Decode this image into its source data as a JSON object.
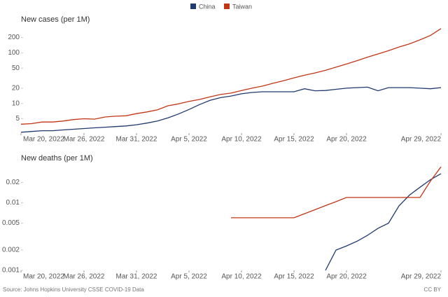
{
  "chart_data": [
    {
      "type": "line",
      "title": "New cases (per 1M)",
      "log": true,
      "x": [
        "2022-03-20",
        "2022-03-21",
        "2022-03-22",
        "2022-03-23",
        "2022-03-24",
        "2022-03-25",
        "2022-03-26",
        "2022-03-27",
        "2022-03-28",
        "2022-03-29",
        "2022-03-30",
        "2022-03-31",
        "2022-04-01",
        "2022-04-02",
        "2022-04-03",
        "2022-04-04",
        "2022-04-05",
        "2022-04-06",
        "2022-04-07",
        "2022-04-08",
        "2022-04-09",
        "2022-04-10",
        "2022-04-11",
        "2022-04-12",
        "2022-04-13",
        "2022-04-14",
        "2022-04-15",
        "2022-04-16",
        "2022-04-17",
        "2022-04-18",
        "2022-04-19",
        "2022-04-20",
        "2022-04-21",
        "2022-04-22",
        "2022-04-23",
        "2022-04-24",
        "2022-04-25",
        "2022-04-26",
        "2022-04-27",
        "2022-04-28",
        "2022-04-29"
      ],
      "xticks": [
        {
          "value": "2022-03-20",
          "label": "Mar 20, 2022"
        },
        {
          "value": "2022-03-26",
          "label": "Mar 26, 2022"
        },
        {
          "value": "2022-03-31",
          "label": "Mar 31, 2022"
        },
        {
          "value": "2022-04-05",
          "label": "Apr 5, 2022"
        },
        {
          "value": "2022-04-10",
          "label": "Apr 10, 2022"
        },
        {
          "value": "2022-04-15",
          "label": "Apr 15, 2022"
        },
        {
          "value": "2022-04-20",
          "label": "Apr 20, 2022"
        },
        {
          "value": "2022-04-29",
          "label": "Apr 29, 2022"
        }
      ],
      "ylim": [
        2.6,
        350
      ],
      "yticks": [
        5,
        10,
        20,
        50,
        100,
        200
      ],
      "series": [
        {
          "name": "China",
          "color": "#1f3a6e",
          "values": [
            2.7,
            2.8,
            2.9,
            2.9,
            3.0,
            3.1,
            3.2,
            3.3,
            3.4,
            3.5,
            3.6,
            3.8,
            4.1,
            4.5,
            5.2,
            6.2,
            7.6,
            9.5,
            11.5,
            13,
            14,
            15.5,
            16.5,
            17,
            17,
            17,
            17,
            19.5,
            17.8,
            18,
            19,
            20,
            20.5,
            21,
            17.8,
            20.5,
            20.5,
            20.5,
            20,
            19.5,
            20.5
          ]
        },
        {
          "name": "Taiwan",
          "color": "#c23616",
          "values": [
            3.9,
            4.0,
            4.3,
            4.3,
            4.5,
            4.8,
            5.0,
            4.9,
            5.4,
            5.6,
            5.7,
            6.3,
            6.8,
            7.5,
            9.0,
            9.8,
            11,
            12,
            13.5,
            15,
            16,
            18,
            20,
            22,
            25,
            28,
            32,
            36,
            40,
            45,
            52,
            60,
            70,
            82,
            95,
            110,
            130,
            150,
            180,
            220,
            300
          ]
        }
      ]
    },
    {
      "type": "line",
      "title": "New deaths (per 1M)",
      "log": true,
      "x": [
        "2022-03-20",
        "2022-03-21",
        "2022-03-22",
        "2022-03-23",
        "2022-03-24",
        "2022-03-25",
        "2022-03-26",
        "2022-03-27",
        "2022-03-28",
        "2022-03-29",
        "2022-03-30",
        "2022-03-31",
        "2022-04-01",
        "2022-04-02",
        "2022-04-03",
        "2022-04-04",
        "2022-04-05",
        "2022-04-06",
        "2022-04-07",
        "2022-04-08",
        "2022-04-09",
        "2022-04-10",
        "2022-04-11",
        "2022-04-12",
        "2022-04-13",
        "2022-04-14",
        "2022-04-15",
        "2022-04-16",
        "2022-04-17",
        "2022-04-18",
        "2022-04-19",
        "2022-04-20",
        "2022-04-21",
        "2022-04-22",
        "2022-04-23",
        "2022-04-24",
        "2022-04-25",
        "2022-04-26",
        "2022-04-27",
        "2022-04-28",
        "2022-04-29"
      ],
      "xticks": [
        {
          "value": "2022-03-20",
          "label": "Mar 20, 2022"
        },
        {
          "value": "2022-03-26",
          "label": "Mar 26, 2022"
        },
        {
          "value": "2022-03-31",
          "label": "Mar 31, 2022"
        },
        {
          "value": "2022-04-05",
          "label": "Apr 5, 2022"
        },
        {
          "value": "2022-04-10",
          "label": "Apr 10, 2022"
        },
        {
          "value": "2022-04-15",
          "label": "Apr 15, 2022"
        },
        {
          "value": "2022-04-20",
          "label": "Apr 20, 2022"
        },
        {
          "value": "2022-04-29",
          "label": "Apr 29, 2022"
        }
      ],
      "ylim": [
        0.001,
        0.035
      ],
      "yticks": [
        0.001,
        0.002,
        0.005,
        0.01,
        0.02
      ],
      "series": [
        {
          "name": "China",
          "color": "#1f3a6e",
          "values": [
            null,
            null,
            null,
            null,
            null,
            null,
            null,
            null,
            null,
            null,
            null,
            null,
            null,
            null,
            null,
            null,
            null,
            null,
            null,
            null,
            null,
            null,
            null,
            null,
            null,
            null,
            null,
            null,
            null,
            0.001,
            0.002,
            0.0023,
            0.0027,
            0.0033,
            0.0042,
            0.005,
            0.009,
            0.013,
            0.017,
            0.022,
            0.027
          ]
        },
        {
          "name": "Taiwan",
          "color": "#c23616",
          "values": [
            null,
            null,
            null,
            null,
            null,
            null,
            null,
            null,
            null,
            null,
            null,
            null,
            null,
            null,
            null,
            null,
            null,
            null,
            null,
            null,
            0.006,
            0.006,
            0.006,
            0.006,
            0.006,
            0.006,
            0.006,
            0.0069,
            0.0079,
            0.0091,
            0.0104,
            0.012,
            0.012,
            0.012,
            0.012,
            0.012,
            0.012,
            0.012,
            0.012,
            0.021,
            0.034
          ]
        }
      ]
    }
  ],
  "source": "Source: Johns Hopkins University CSSE COVID-19 Data",
  "license": "CC BY"
}
